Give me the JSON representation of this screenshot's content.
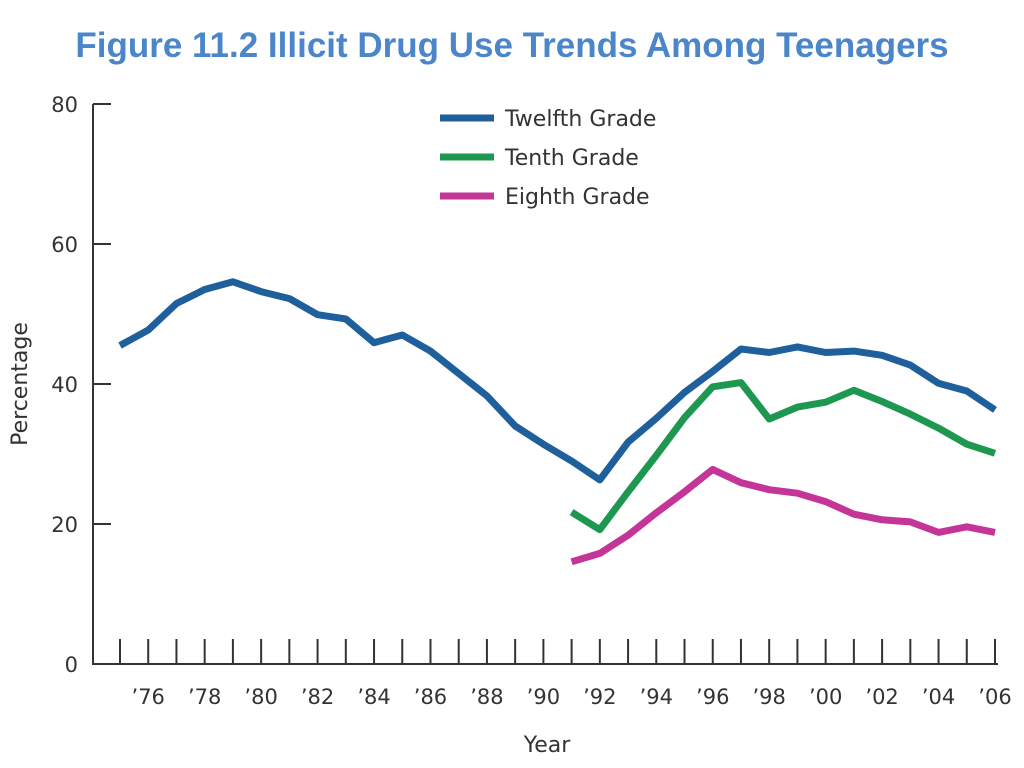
{
  "title": "Figure 11.2 Illicit Drug Use Trends Among Teenagers",
  "chart_data": {
    "type": "line",
    "title": "Figure 11.2 Illicit Drug Use Trends Among Teenagers",
    "xlabel": "Year",
    "ylabel": "Percentage",
    "xlim": [
      1975,
      2006
    ],
    "ylim": [
      0,
      80
    ],
    "y_ticks": [
      0,
      20,
      40,
      60,
      80
    ],
    "x_tick_labels": [
      "’76",
      "’78",
      "’80",
      "’82",
      "’84",
      "’86",
      "’88",
      "’90",
      "’92",
      "’94",
      "’96",
      "’98",
      "’00",
      "’02",
      "’04",
      "’06"
    ],
    "x_tick_years": [
      1976,
      1978,
      1980,
      1982,
      1984,
      1986,
      1988,
      1990,
      1992,
      1994,
      1996,
      1998,
      2000,
      2002,
      2004,
      2006
    ],
    "grid": false,
    "legend_position": "top-center",
    "series": [
      {
        "name": "Twelfth Grade",
        "color": "#1f5f9c",
        "x": [
          1975,
          1976,
          1977,
          1978,
          1979,
          1980,
          1981,
          1982,
          1983,
          1984,
          1985,
          1986,
          1987,
          1988,
          1989,
          1990,
          1991,
          1992,
          1993,
          1994,
          1995,
          1996,
          1997,
          1998,
          1999,
          2000,
          2001,
          2002,
          2003,
          2004,
          2005,
          2006
        ],
        "values": [
          45.5,
          47.7,
          51.5,
          53.5,
          54.6,
          53.2,
          52.2,
          49.9,
          49.3,
          45.9,
          47.0,
          44.7,
          41.5,
          38.3,
          34.0,
          31.4,
          29.0,
          26.3,
          31.7,
          35.1,
          38.8,
          41.8,
          45.0,
          44.5,
          45.3,
          44.5,
          44.7,
          44.1,
          42.7,
          40.1,
          39.0,
          36.3
        ]
      },
      {
        "name": "Tenth Grade",
        "color": "#1e9850",
        "x": [
          1991,
          1992,
          1993,
          1994,
          1995,
          1996,
          1997,
          1998,
          1999,
          2000,
          2001,
          2002,
          2003,
          2004,
          2005,
          2006
        ],
        "values": [
          21.7,
          19.2,
          24.6,
          29.8,
          35.2,
          39.6,
          40.2,
          35.0,
          36.7,
          37.4,
          39.1,
          37.5,
          35.7,
          33.7,
          31.4,
          30.1
        ]
      },
      {
        "name": "Eighth Grade",
        "color": "#c43598",
        "x": [
          1991,
          1992,
          1993,
          1994,
          1995,
          1996,
          1997,
          1998,
          1999,
          2000,
          2001,
          2002,
          2003,
          2004,
          2005,
          2006
        ],
        "values": [
          14.6,
          15.8,
          18.4,
          21.6,
          24.6,
          27.8,
          25.9,
          24.9,
          24.4,
          23.2,
          21.4,
          20.6,
          20.3,
          18.8,
          19.6,
          18.8
        ]
      }
    ]
  }
}
